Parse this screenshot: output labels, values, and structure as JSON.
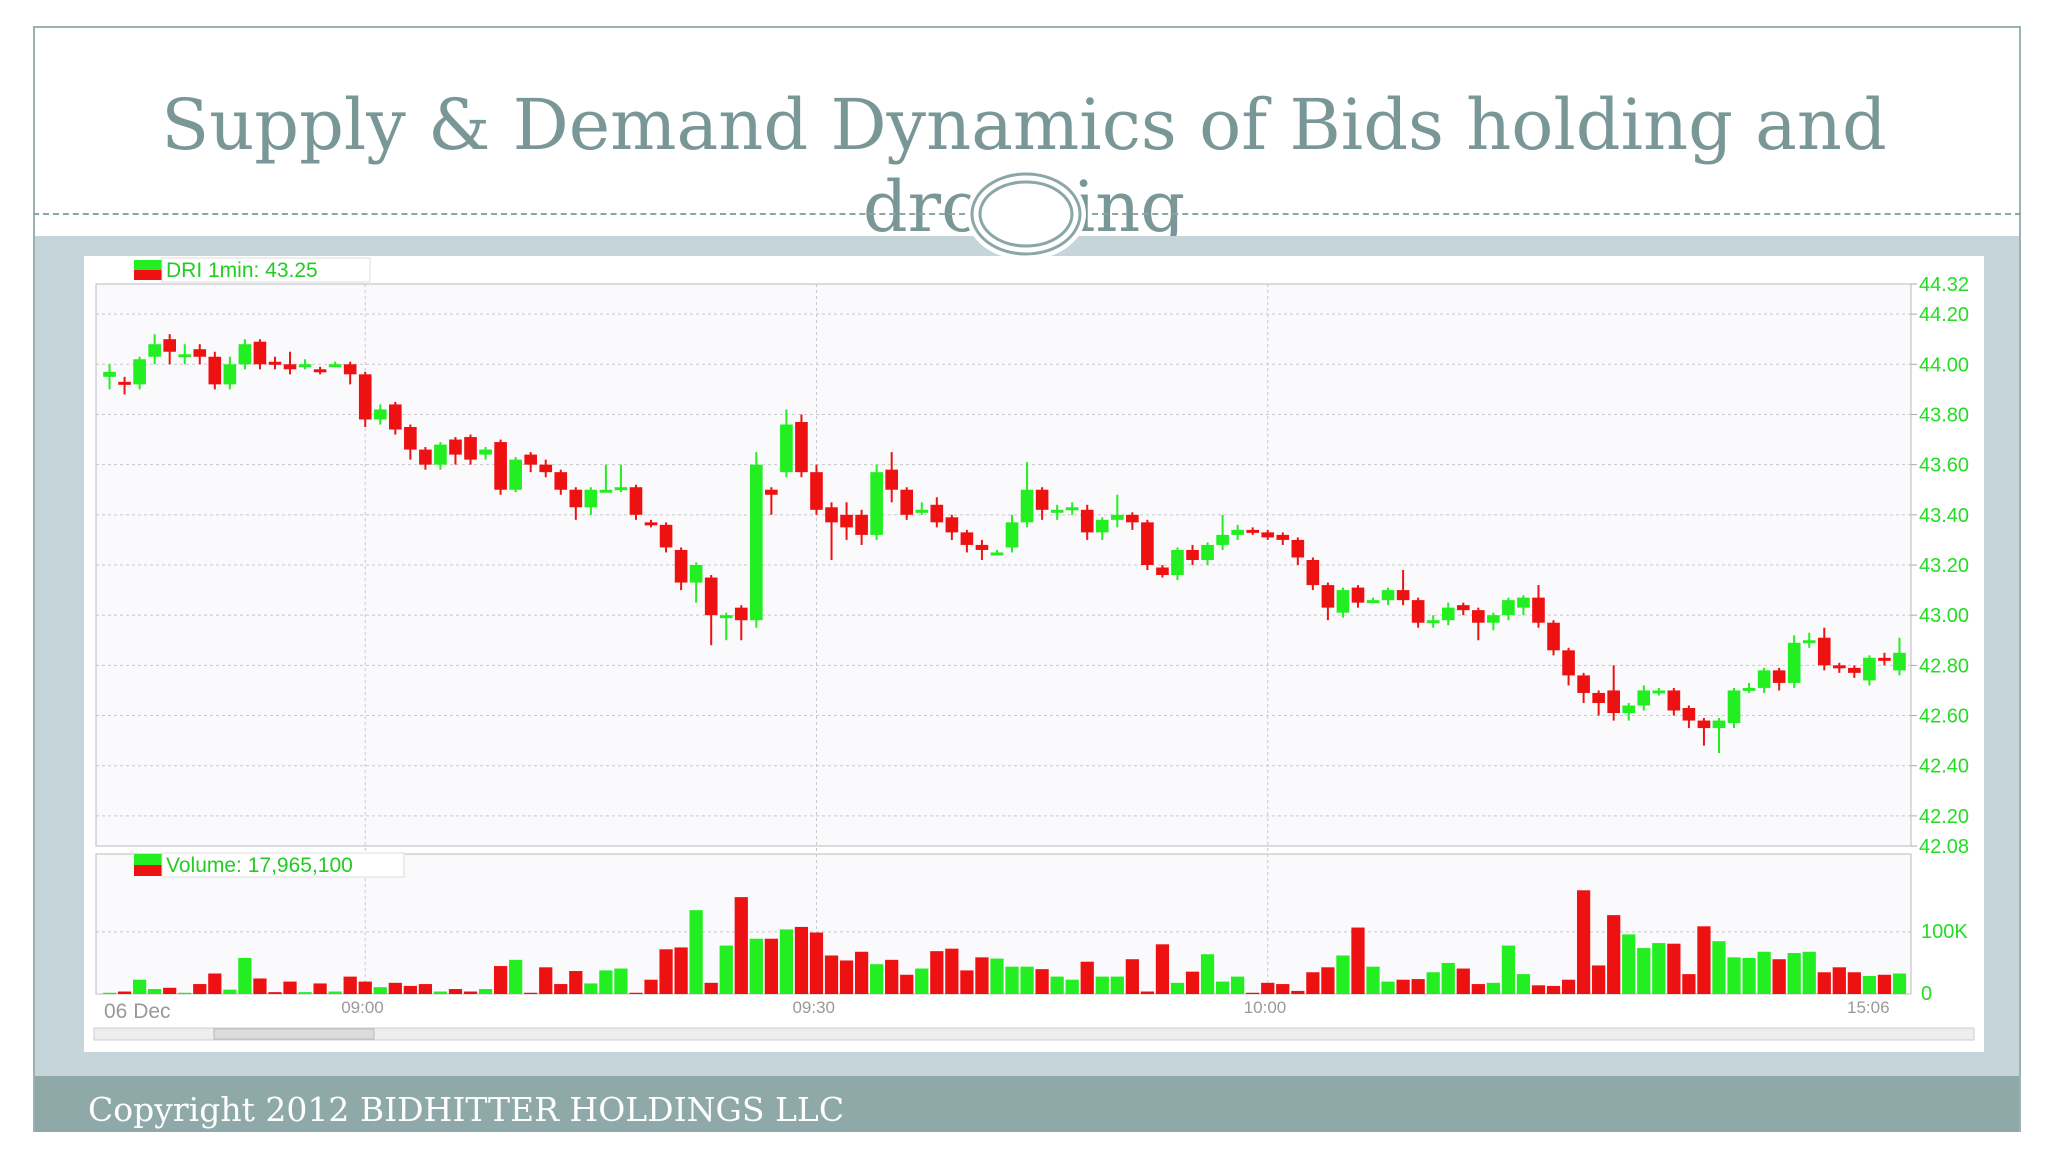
{
  "slide": {
    "title": "Supply & Demand Dynamics of Bids holding and dropping",
    "copyright": "Copyright 2012 BIDHITTER HOLDINGS LLC"
  },
  "colors": {
    "up": "#22ee22",
    "down": "#ee1111",
    "axis_label": "#22dd22",
    "grid": "#c8c8c8",
    "accent": "#7a9797"
  },
  "chart_data": [
    {
      "type": "candlestick",
      "legend": "DRI 1min: 43.25",
      "legend_placement": "top-left",
      "y_ticks": [
        "44.32",
        "44.20",
        "44.00",
        "43.80",
        "43.60",
        "43.40",
        "43.20",
        "43.00",
        "42.80",
        "42.60",
        "42.40",
        "42.20",
        "42.08"
      ],
      "ylim": [
        42.08,
        44.32
      ],
      "x_ticks": [
        "06 Dec",
        "09:00",
        "09:30",
        "10:00",
        "15:06"
      ],
      "grid": true,
      "candles": [
        [
          43.95,
          43.97,
          43.9,
          44.0
        ],
        [
          43.93,
          43.92,
          43.88,
          43.95
        ],
        [
          43.92,
          44.02,
          43.9,
          44.03
        ],
        [
          44.03,
          44.08,
          44.0,
          44.12
        ],
        [
          44.1,
          44.05,
          44.0,
          44.12
        ],
        [
          44.03,
          44.04,
          44.0,
          44.08
        ],
        [
          44.06,
          44.03,
          44.0,
          44.08
        ],
        [
          44.03,
          43.92,
          43.9,
          44.05
        ],
        [
          43.92,
          44.0,
          43.9,
          44.03
        ],
        [
          44.0,
          44.08,
          43.98,
          44.1
        ],
        [
          44.09,
          44.0,
          43.98,
          44.1
        ],
        [
          44.01,
          44.0,
          43.98,
          44.03
        ],
        [
          44.0,
          43.98,
          43.96,
          44.05
        ],
        [
          43.99,
          44.0,
          43.98,
          44.02
        ],
        [
          43.98,
          43.97,
          43.96,
          43.99
        ],
        [
          44.0,
          44.0,
          43.99,
          44.01
        ],
        [
          44.0,
          43.96,
          43.92,
          44.01
        ],
        [
          43.96,
          43.78,
          43.75,
          43.97
        ],
        [
          43.78,
          43.82,
          43.76,
          43.84
        ],
        [
          43.84,
          43.74,
          43.72,
          43.85
        ],
        [
          43.75,
          43.66,
          43.62,
          43.76
        ],
        [
          43.66,
          43.6,
          43.58,
          43.67
        ],
        [
          43.6,
          43.68,
          43.58,
          43.69
        ],
        [
          43.7,
          43.64,
          43.6,
          43.71
        ],
        [
          43.71,
          43.62,
          43.6,
          43.72
        ],
        [
          43.64,
          43.66,
          43.62,
          43.67
        ],
        [
          43.69,
          43.5,
          43.48,
          43.7
        ],
        [
          43.5,
          43.62,
          43.49,
          43.63
        ],
        [
          43.64,
          43.6,
          43.57,
          43.65
        ],
        [
          43.6,
          43.57,
          43.55,
          43.62
        ],
        [
          43.57,
          43.5,
          43.48,
          43.58
        ],
        [
          43.5,
          43.43,
          43.38,
          43.51
        ],
        [
          43.43,
          43.5,
          43.4,
          43.51
        ],
        [
          43.5,
          43.5,
          43.49,
          43.6
        ],
        [
          43.5,
          43.51,
          43.49,
          43.6
        ],
        [
          43.51,
          43.4,
          43.38,
          43.52
        ],
        [
          43.37,
          43.36,
          43.35,
          43.38
        ],
        [
          43.36,
          43.27,
          43.25,
          43.37
        ],
        [
          43.26,
          43.13,
          43.1,
          43.27
        ],
        [
          43.13,
          43.2,
          43.05,
          43.21
        ],
        [
          43.15,
          43.0,
          42.88,
          43.16
        ],
        [
          43.0,
          43.0,
          42.9,
          43.01
        ],
        [
          43.03,
          42.98,
          42.9,
          43.04
        ],
        [
          42.98,
          43.6,
          42.95,
          43.65
        ],
        [
          43.5,
          43.48,
          43.4,
          43.51
        ],
        [
          43.57,
          43.76,
          43.55,
          43.82
        ],
        [
          43.77,
          43.57,
          43.55,
          43.8
        ],
        [
          43.57,
          43.42,
          43.4,
          43.6
        ],
        [
          43.43,
          43.37,
          43.22,
          43.45
        ],
        [
          43.4,
          43.35,
          43.3,
          43.45
        ],
        [
          43.4,
          43.32,
          43.28,
          43.42
        ],
        [
          43.32,
          43.57,
          43.3,
          43.6
        ],
        [
          43.58,
          43.5,
          43.45,
          43.65
        ],
        [
          43.5,
          43.4,
          43.38,
          43.51
        ],
        [
          43.41,
          43.42,
          43.4,
          43.45
        ],
        [
          43.44,
          43.37,
          43.35,
          43.47
        ],
        [
          43.39,
          43.33,
          43.3,
          43.4
        ],
        [
          43.33,
          43.28,
          43.25,
          43.34
        ],
        [
          43.28,
          43.26,
          43.22,
          43.3
        ],
        [
          43.25,
          43.25,
          43.24,
          43.26
        ],
        [
          43.27,
          43.37,
          43.25,
          43.4
        ],
        [
          43.37,
          43.5,
          43.35,
          43.61
        ],
        [
          43.5,
          43.42,
          43.38,
          43.51
        ],
        [
          43.42,
          43.42,
          43.38,
          43.44
        ],
        [
          43.42,
          43.43,
          43.4,
          43.45
        ],
        [
          43.42,
          43.33,
          43.3,
          43.44
        ],
        [
          43.33,
          43.38,
          43.3,
          43.39
        ],
        [
          43.38,
          43.4,
          43.35,
          43.48
        ],
        [
          43.4,
          43.37,
          43.34,
          43.41
        ],
        [
          43.37,
          43.2,
          43.18,
          43.38
        ],
        [
          43.19,
          43.16,
          43.15,
          43.2
        ],
        [
          43.16,
          43.26,
          43.14,
          43.27
        ],
        [
          43.26,
          43.22,
          43.2,
          43.28
        ],
        [
          43.22,
          43.28,
          43.2,
          43.29
        ],
        [
          43.28,
          43.32,
          43.26,
          43.4
        ],
        [
          43.32,
          43.34,
          43.3,
          43.36
        ],
        [
          43.34,
          43.33,
          43.32,
          43.35
        ],
        [
          43.33,
          43.31,
          43.3,
          43.34
        ],
        [
          43.32,
          43.3,
          43.28,
          43.33
        ],
        [
          43.3,
          43.23,
          43.2,
          43.31
        ],
        [
          43.22,
          43.12,
          43.1,
          43.23
        ],
        [
          43.12,
          43.03,
          42.98,
          43.13
        ],
        [
          43.01,
          43.1,
          42.99,
          43.11
        ],
        [
          43.11,
          43.05,
          43.03,
          43.12
        ],
        [
          43.06,
          43.06,
          43.05,
          43.07
        ],
        [
          43.06,
          43.1,
          43.04,
          43.11
        ],
        [
          43.1,
          43.06,
          43.04,
          43.18
        ],
        [
          43.06,
          42.97,
          42.95,
          43.07
        ],
        [
          42.97,
          42.98,
          42.95,
          43.0
        ],
        [
          42.98,
          43.03,
          42.96,
          43.05
        ],
        [
          43.04,
          43.02,
          43.0,
          43.05
        ],
        [
          43.02,
          42.97,
          42.9,
          43.03
        ],
        [
          42.97,
          43.0,
          42.94,
          43.01
        ],
        [
          43.0,
          43.06,
          42.98,
          43.07
        ],
        [
          43.03,
          43.07,
          43.0,
          43.08
        ],
        [
          43.07,
          42.97,
          42.95,
          43.12
        ],
        [
          42.97,
          42.86,
          42.84,
          42.98
        ],
        [
          42.86,
          42.76,
          42.72,
          42.87
        ],
        [
          42.76,
          42.69,
          42.65,
          42.77
        ],
        [
          42.69,
          42.65,
          42.6,
          42.7
        ],
        [
          42.7,
          42.61,
          42.58,
          42.8
        ],
        [
          42.61,
          42.64,
          42.58,
          42.65
        ],
        [
          42.64,
          42.7,
          42.62,
          42.72
        ],
        [
          42.7,
          42.7,
          42.68,
          42.71
        ],
        [
          42.7,
          42.62,
          42.6,
          42.71
        ],
        [
          42.63,
          42.58,
          42.55,
          42.64
        ],
        [
          42.58,
          42.55,
          42.48,
          42.59
        ],
        [
          42.55,
          42.58,
          42.45,
          42.59
        ],
        [
          42.57,
          42.7,
          42.55,
          42.71
        ],
        [
          42.71,
          42.71,
          42.69,
          42.73
        ],
        [
          42.71,
          42.78,
          42.69,
          42.79
        ],
        [
          42.78,
          42.73,
          42.7,
          42.79
        ],
        [
          42.73,
          42.89,
          42.71,
          42.92
        ],
        [
          42.89,
          42.9,
          42.87,
          42.93
        ],
        [
          42.91,
          42.8,
          42.78,
          42.95
        ],
        [
          42.8,
          42.79,
          42.77,
          42.81
        ],
        [
          42.79,
          42.77,
          42.75,
          42.8
        ],
        [
          42.74,
          42.83,
          42.72,
          42.84
        ],
        [
          42.83,
          42.82,
          42.8,
          42.85
        ],
        [
          42.78,
          42.85,
          42.76,
          42.91
        ]
      ]
    },
    {
      "type": "bar",
      "legend": "Volume: 17,965,100",
      "y_ticks": [
        "100K",
        "0"
      ],
      "ylim": [
        0,
        190000
      ],
      "volumes": [
        2,
        4,
        23,
        8,
        10,
        2,
        16,
        33,
        7,
        58,
        25,
        3,
        20,
        3,
        17,
        4,
        28,
        20,
        11,
        18,
        13,
        16,
        4,
        8,
        4,
        8,
        45,
        55,
        2,
        43,
        16,
        37,
        17,
        38,
        41,
        2,
        23,
        72,
        75,
        135,
        18,
        78,
        156,
        89,
        89,
        104,
        108,
        99,
        62,
        54,
        68,
        48,
        55,
        31,
        41,
        69,
        73,
        38,
        59,
        57,
        44,
        44,
        40,
        28,
        23,
        52,
        28,
        28,
        56,
        4,
        80,
        18,
        36,
        64,
        20,
        28,
        2,
        18,
        16,
        5,
        35,
        43,
        62,
        107,
        44,
        20,
        23,
        24,
        35,
        50,
        41,
        16,
        18,
        78,
        32,
        14,
        13,
        23,
        167,
        46,
        127,
        96,
        74,
        82,
        81,
        32,
        109,
        85,
        59,
        58,
        68,
        56,
        66,
        68,
        35,
        43,
        35,
        29,
        31,
        33
      ]
    }
  ]
}
